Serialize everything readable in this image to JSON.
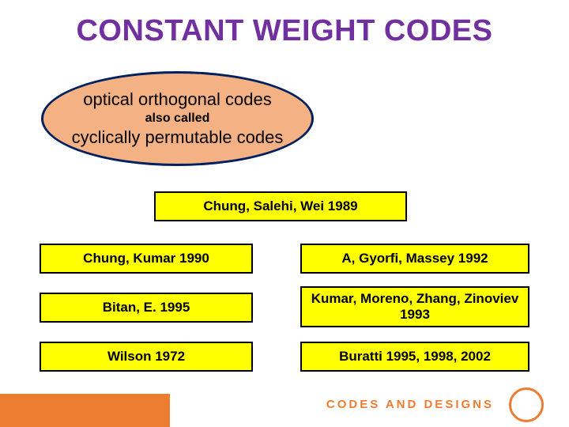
{
  "title": "CONSTANT WEIGHT CODES",
  "ellipse": {
    "line1": "optical orthogonal codes",
    "line2": "also called",
    "line3": "cyclically permutable codes"
  },
  "refs": {
    "top": "Chung, Salehi, Wei 1989",
    "l1": "Chung, Kumar 1990",
    "r1": "A, Gyorfi, Massey 1992",
    "l2": "Bitan, E. 1995",
    "r2": "Kumar, Moreno, Zhang, Zinoviev 1993",
    "l3": "Wilson 1972",
    "r3": "Buratti 1995, 1998, 2002"
  },
  "footer": {
    "text": "CODES AND DESIGNS"
  },
  "colors": {
    "title": "#7030a0",
    "ellipse_fill": "#f4b183",
    "ellipse_border": "#002060",
    "ref_fill": "#ffff00",
    "ref_border": "#000000",
    "accent": "#ed7d31",
    "background": "#ffffff"
  }
}
